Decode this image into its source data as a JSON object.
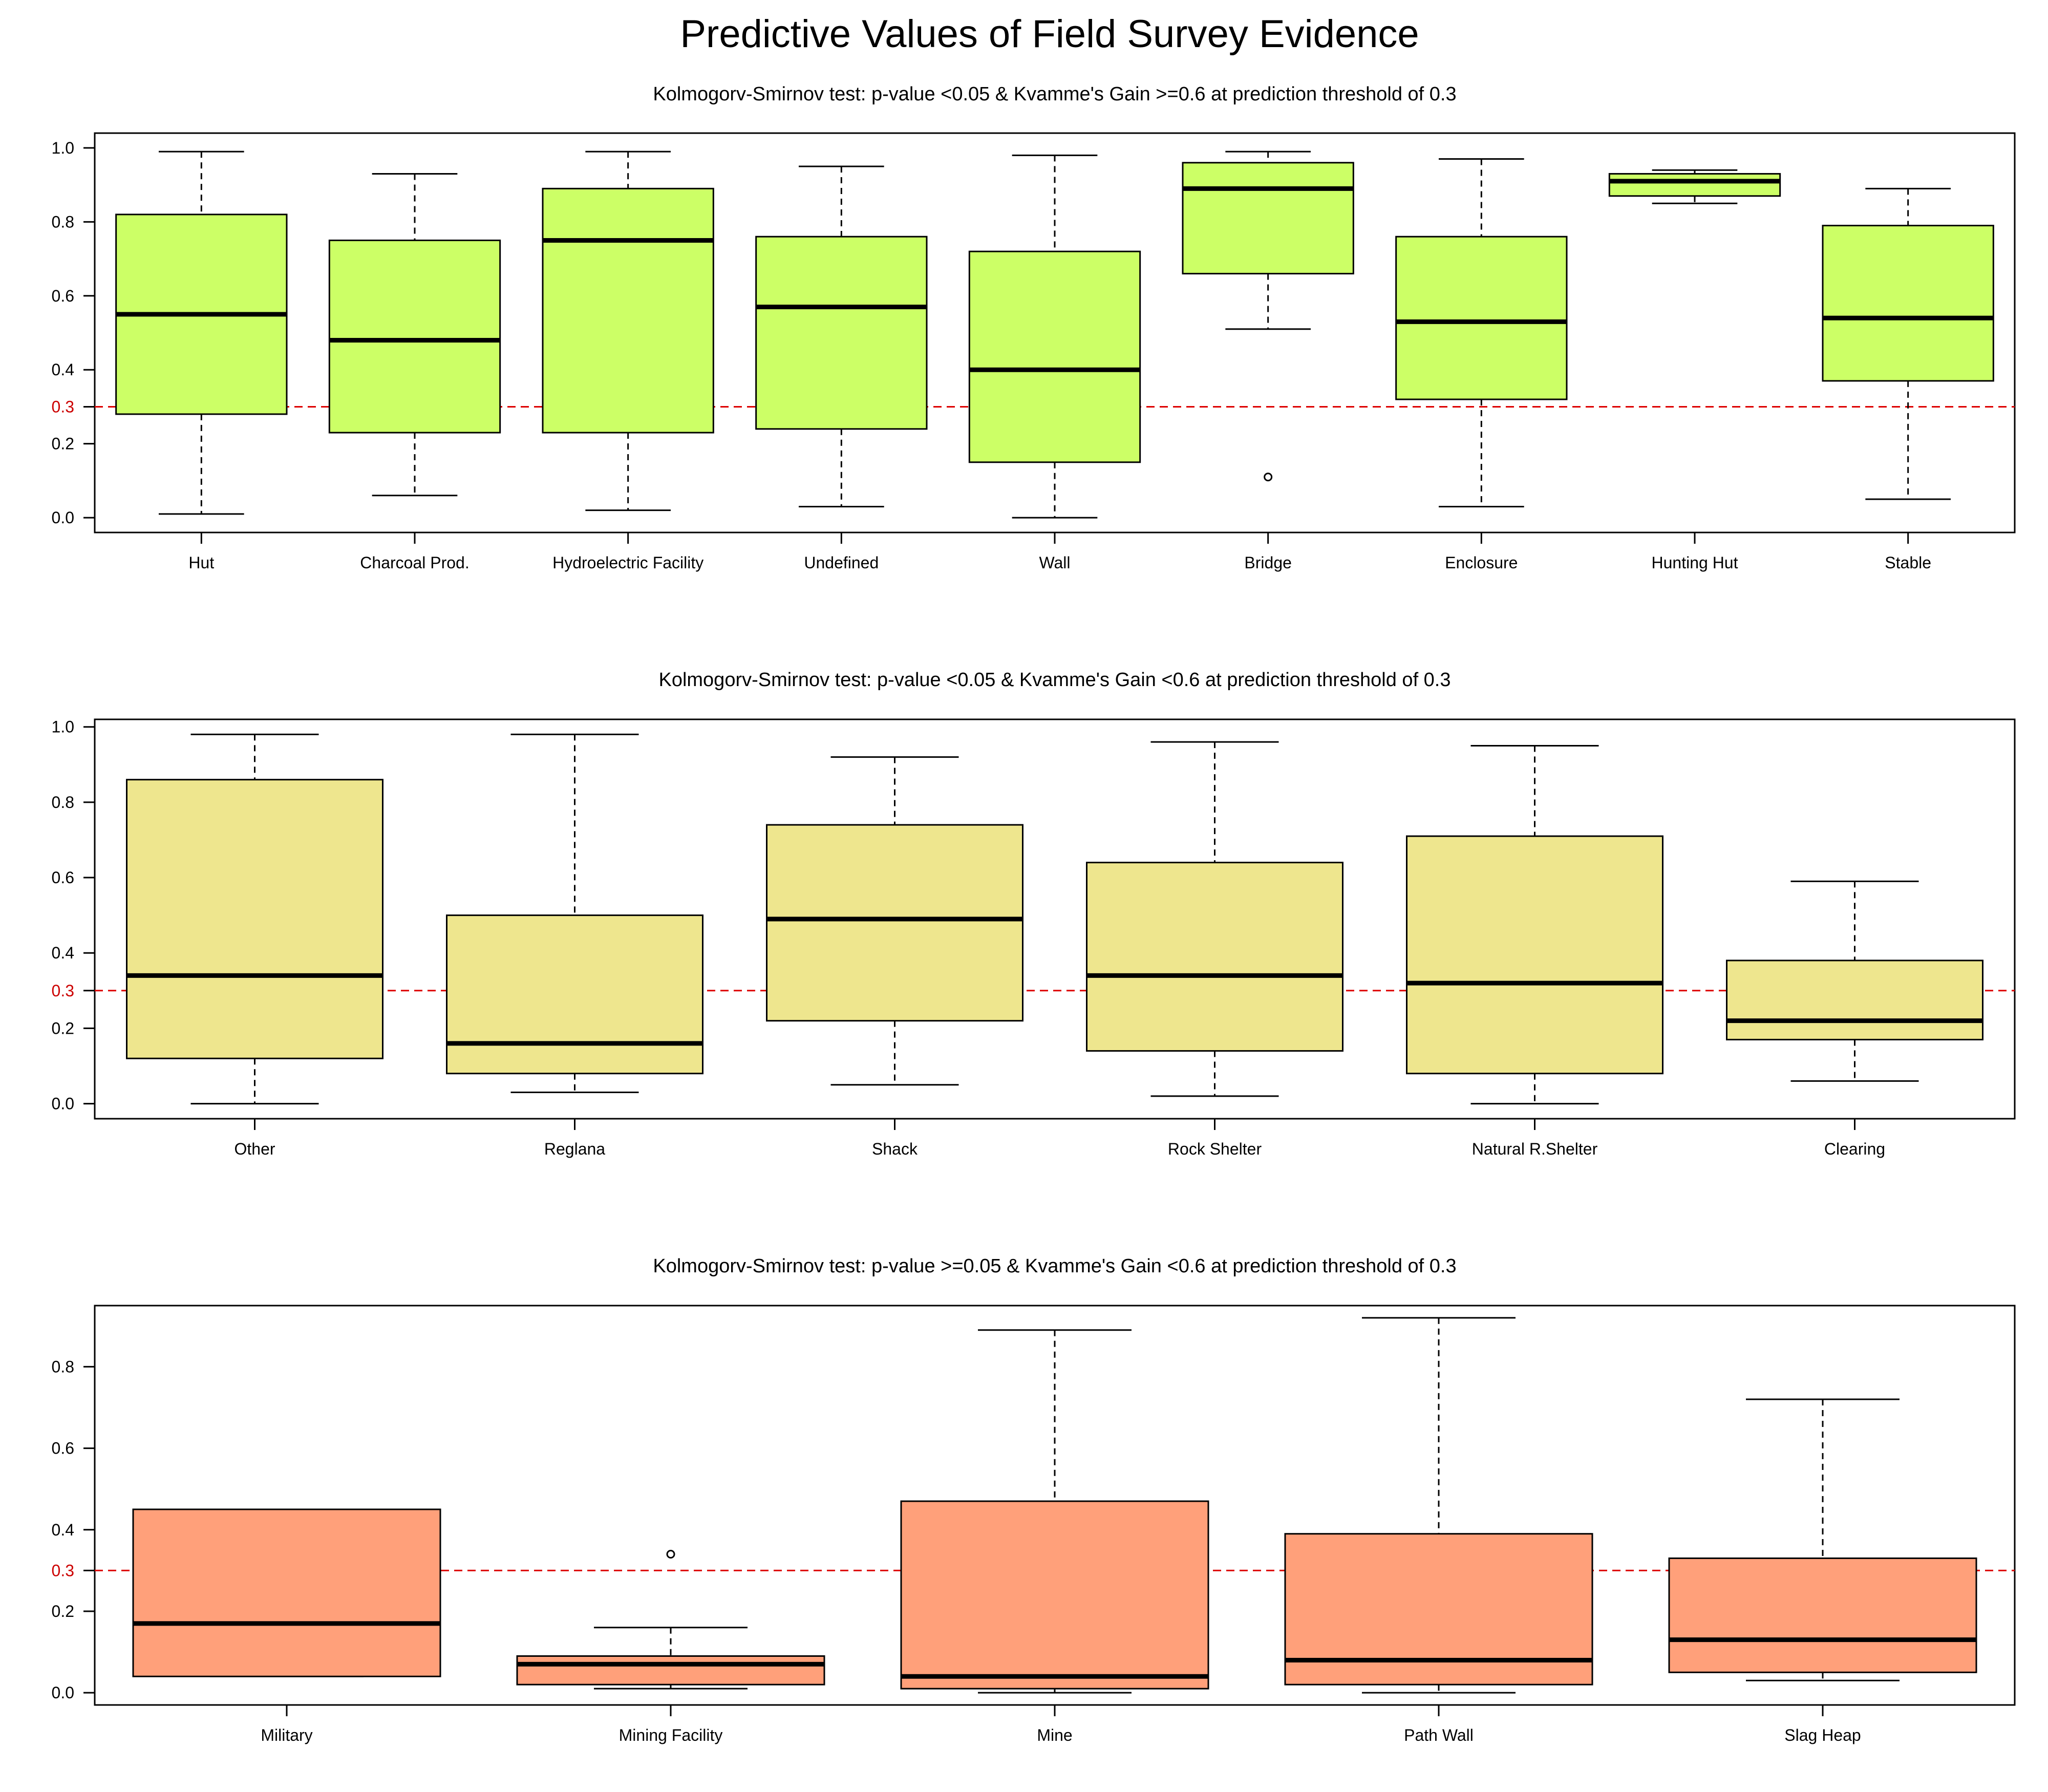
{
  "title": "Predictive Values of Field Survey Evidence",
  "reference_line": {
    "value": 0.3,
    "label": "0.3",
    "color": "#dd0000"
  },
  "chart_data": [
    {
      "type": "boxplot",
      "subtitle": "Kolmogorv-Smirnov test: p-value <0.05 & Kvamme's Gain >=0.6 at prediction threshold of 0.3",
      "fill": "#ccff66",
      "ylim": [
        -0.04,
        1.04
      ],
      "yticks": [
        "0.0",
        "0.2",
        "0.4",
        "0.6",
        "0.8",
        "1.0"
      ],
      "categories": [
        "Hut",
        "Charcoal Prod.",
        "Hydroelectric Facility",
        "Undefined",
        "Wall",
        "Bridge",
        "Enclosure",
        "Hunting Hut",
        "Stable"
      ],
      "boxes": [
        {
          "min": 0.01,
          "q1": 0.28,
          "median": 0.55,
          "q3": 0.82,
          "max": 0.99,
          "outliers": []
        },
        {
          "min": 0.06,
          "q1": 0.23,
          "median": 0.48,
          "q3": 0.75,
          "max": 0.93,
          "outliers": []
        },
        {
          "min": 0.02,
          "q1": 0.23,
          "median": 0.75,
          "q3": 0.89,
          "max": 0.99,
          "outliers": []
        },
        {
          "min": 0.03,
          "q1": 0.24,
          "median": 0.57,
          "q3": 0.76,
          "max": 0.95,
          "outliers": []
        },
        {
          "min": 0.0,
          "q1": 0.15,
          "median": 0.4,
          "q3": 0.72,
          "max": 0.98,
          "outliers": []
        },
        {
          "min": 0.51,
          "q1": 0.66,
          "median": 0.89,
          "q3": 0.96,
          "max": 0.99,
          "outliers": [
            0.11
          ]
        },
        {
          "min": 0.03,
          "q1": 0.32,
          "median": 0.53,
          "q3": 0.76,
          "max": 0.97,
          "outliers": []
        },
        {
          "min": 0.85,
          "q1": 0.87,
          "median": 0.91,
          "q3": 0.93,
          "max": 0.94,
          "outliers": []
        },
        {
          "min": 0.05,
          "q1": 0.37,
          "median": 0.54,
          "q3": 0.79,
          "max": 0.89,
          "outliers": []
        }
      ]
    },
    {
      "type": "boxplot",
      "subtitle": "Kolmogorv-Smirnov test: p-value <0.05 & Kvamme's Gain <0.6 at prediction threshold of 0.3",
      "fill": "#eee68e",
      "ylim": [
        -0.04,
        1.02
      ],
      "yticks": [
        "0.0",
        "0.2",
        "0.4",
        "0.6",
        "0.8",
        "1.0"
      ],
      "categories": [
        "Other",
        "Reglana",
        "Shack",
        "Rock Shelter",
        "Natural R.Shelter",
        "Clearing"
      ],
      "boxes": [
        {
          "min": 0.0,
          "q1": 0.12,
          "median": 0.34,
          "q3": 0.86,
          "max": 0.98,
          "outliers": []
        },
        {
          "min": 0.03,
          "q1": 0.08,
          "median": 0.16,
          "q3": 0.5,
          "max": 0.98,
          "outliers": []
        },
        {
          "min": 0.05,
          "q1": 0.22,
          "median": 0.49,
          "q3": 0.74,
          "max": 0.92,
          "outliers": []
        },
        {
          "min": 0.02,
          "q1": 0.14,
          "median": 0.34,
          "q3": 0.64,
          "max": 0.96,
          "outliers": []
        },
        {
          "min": 0.0,
          "q1": 0.08,
          "median": 0.32,
          "q3": 0.71,
          "max": 0.95,
          "outliers": []
        },
        {
          "min": 0.06,
          "q1": 0.17,
          "median": 0.22,
          "q3": 0.38,
          "max": 0.59,
          "outliers": []
        }
      ]
    },
    {
      "type": "boxplot",
      "subtitle": "Kolmogorv-Smirnov test: p-value >=0.05 & Kvamme's Gain <0.6 at prediction threshold of 0.3",
      "fill": "#ffa07a",
      "ylim": [
        -0.03,
        0.95
      ],
      "yticks": [
        "0.0",
        "0.2",
        "0.4",
        "0.6",
        "0.8"
      ],
      "categories": [
        "Military",
        "Mining Facility",
        "Mine",
        "Path Wall",
        "Slag Heap"
      ],
      "boxes": [
        {
          "min": 0.04,
          "q1": 0.04,
          "median": 0.17,
          "q3": 0.45,
          "max": 0.45,
          "outliers": []
        },
        {
          "min": 0.01,
          "q1": 0.02,
          "median": 0.07,
          "q3": 0.09,
          "max": 0.16,
          "outliers": [
            0.34
          ]
        },
        {
          "min": 0.0,
          "q1": 0.01,
          "median": 0.04,
          "q3": 0.47,
          "max": 0.89,
          "outliers": []
        },
        {
          "min": 0.0,
          "q1": 0.02,
          "median": 0.08,
          "q3": 0.39,
          "max": 0.92,
          "outliers": []
        },
        {
          "min": 0.03,
          "q1": 0.05,
          "median": 0.13,
          "q3": 0.33,
          "max": 0.72,
          "outliers": []
        }
      ]
    }
  ]
}
